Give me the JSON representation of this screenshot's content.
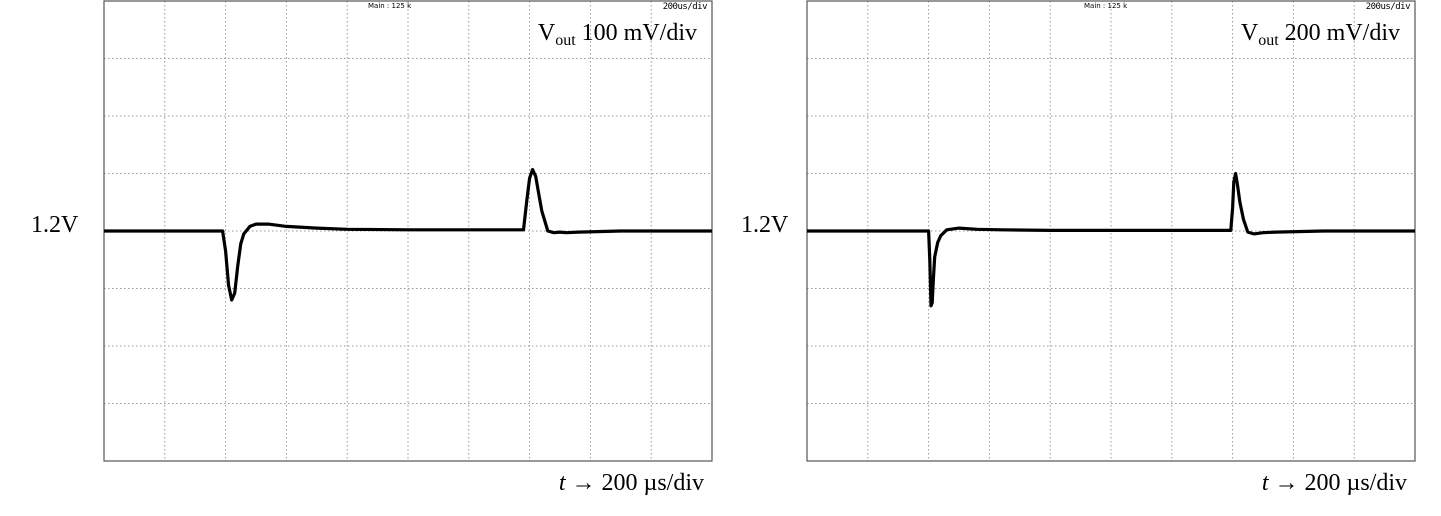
{
  "chart_data": [
    {
      "type": "line",
      "title": "",
      "channel_label": {
        "symbol": "V",
        "subscript": "out",
        "scale": "100 mV/div"
      },
      "header_main": "Main : 125 k",
      "header_timebase": "200us/div",
      "ref_label": "1.2V",
      "x_label": {
        "variable": "t",
        "text": "→ 200 µs/div"
      },
      "grid": true,
      "xlim": [
        0,
        10
      ],
      "ylim": [
        -4,
        4
      ],
      "x_unit": "div",
      "y_unit": "div",
      "series": [
        {
          "x": [
            0,
            1.95,
            2.0,
            2.05,
            2.1,
            2.15,
            2.2,
            2.25,
            2.3,
            2.4,
            2.5,
            2.7,
            3.0,
            3.5,
            4.0,
            5.0,
            6.0,
            6.9,
            6.95,
            7.0,
            7.05,
            7.1,
            7.15,
            7.2,
            7.3,
            7.4,
            7.5,
            7.6,
            7.8,
            8.5,
            10
          ],
          "y": [
            0,
            0,
            -0.35,
            -0.95,
            -1.2,
            -1.08,
            -0.6,
            -0.22,
            -0.05,
            0.08,
            0.12,
            0.12,
            0.08,
            0.05,
            0.03,
            0.02,
            0.02,
            0.02,
            0.5,
            0.92,
            1.07,
            0.95,
            0.65,
            0.35,
            0.0,
            -0.03,
            -0.02,
            -0.03,
            -0.02,
            0,
            0
          ]
        }
      ]
    },
    {
      "type": "line",
      "title": "",
      "channel_label": {
        "symbol": "V",
        "subscript": "out",
        "scale": "200 mV/div"
      },
      "header_main": "Main : 125 k",
      "header_timebase": "200us/div",
      "ref_label": "1.2V",
      "x_label": {
        "variable": "t",
        "text": "→ 200 µs/div"
      },
      "grid": true,
      "xlim": [
        0,
        10
      ],
      "ylim": [
        -4,
        4
      ],
      "x_unit": "div",
      "y_unit": "div",
      "series": [
        {
          "x": [
            0,
            2.0,
            2.02,
            2.04,
            2.06,
            2.08,
            2.1,
            2.15,
            2.2,
            2.3,
            2.5,
            2.8,
            3.2,
            4.0,
            5.0,
            6.0,
            6.97,
            7.0,
            7.02,
            7.05,
            7.08,
            7.12,
            7.18,
            7.25,
            7.35,
            7.5,
            7.7,
            8.5,
            10
          ],
          "y": [
            0,
            0,
            -0.5,
            -1.3,
            -1.25,
            -0.8,
            -0.45,
            -0.2,
            -0.08,
            0.02,
            0.05,
            0.03,
            0.02,
            0.01,
            0.01,
            0.01,
            0.01,
            0.4,
            0.85,
            1.0,
            0.8,
            0.5,
            0.2,
            -0.02,
            -0.05,
            -0.03,
            -0.02,
            0,
            0
          ]
        }
      ]
    }
  ]
}
